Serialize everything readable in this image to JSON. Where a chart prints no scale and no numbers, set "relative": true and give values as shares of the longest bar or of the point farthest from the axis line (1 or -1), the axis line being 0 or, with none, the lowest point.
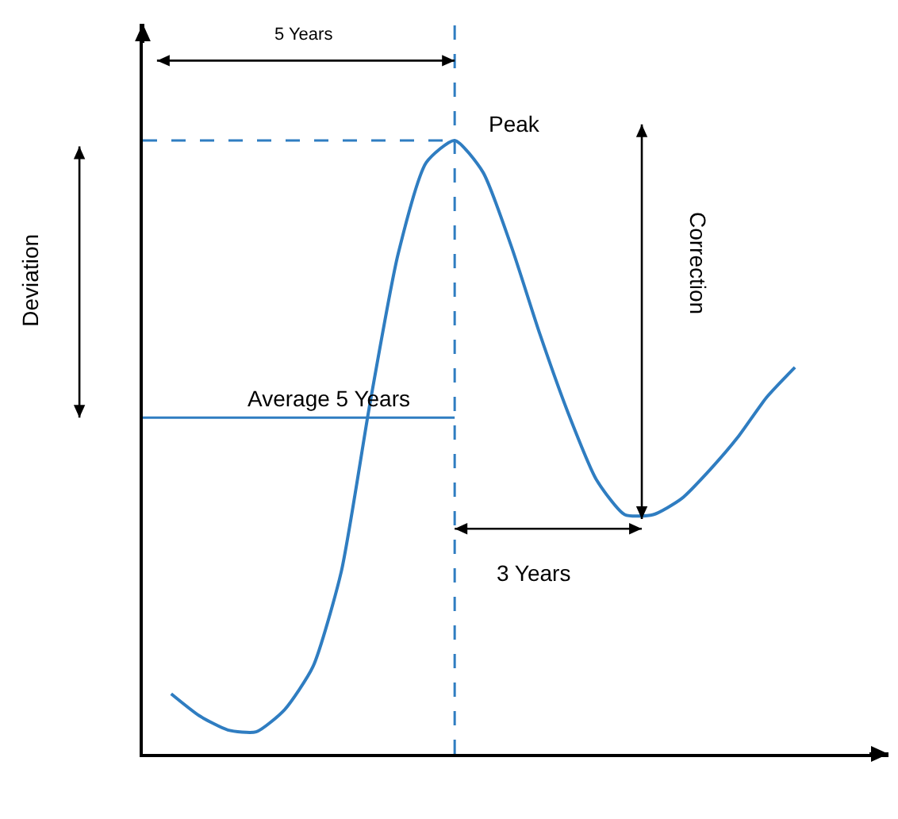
{
  "chart_data": {
    "type": "line",
    "relative": true,
    "marker": "none",
    "line_style": "solid",
    "categories": [
      null,
      null,
      null,
      null,
      null,
      null,
      null,
      null,
      null,
      null,
      null,
      null,
      null,
      null,
      null,
      null,
      null,
      null,
      null,
      null,
      null,
      null,
      null,
      null,
      null,
      null,
      null
    ],
    "series": [
      {
        "color": "#2f7dc1",
        "values": [
          null,
          0.098,
          0.062,
          0.039,
          0.036,
          0.072,
          0.142,
          0.297,
          0.568,
          0.814,
          0.964,
          1,
          0.948,
          0.827,
          0.685,
          0.556,
          0.447,
          0.39,
          0.39,
          0.416,
          0.463,
          0.517,
          0.581,
          0.63,
          null,
          null,
          null
        ]
      }
    ],
    "ref_lines": [
      {
        "axis": "y",
        "value": 1,
        "label": "Peak",
        "line_style": "dashed",
        "color": "#2f7dc1"
      },
      {
        "axis": "y",
        "value": 0.548,
        "label": "Average 5 Years",
        "line_style": "solid",
        "color": "#2f7dc1"
      }
    ],
    "annotations": [
      "5 Years",
      "3 Years",
      "Deviation",
      "Correction"
    ]
  }
}
